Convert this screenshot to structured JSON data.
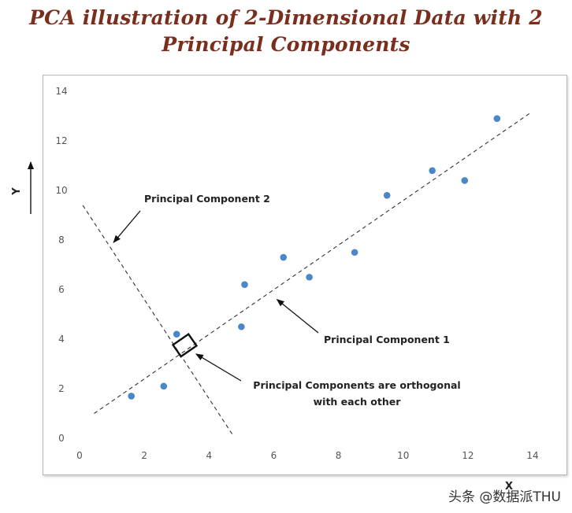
{
  "title": {
    "line1": "PCA illustration of 2-Dimensional Data with 2",
    "line2": "Principal Components"
  },
  "watermark": "头条 @数据派THU",
  "chart_data": {
    "type": "scatter",
    "title": "PCA illustration of 2-Dimensional Data with 2 Principal Components",
    "xlabel": "X",
    "ylabel": "Y",
    "xlim": [
      0,
      14
    ],
    "ylim": [
      0,
      14
    ],
    "x_ticks": [
      0,
      2,
      4,
      6,
      8,
      10,
      12,
      14
    ],
    "y_ticks": [
      0,
      2,
      4,
      6,
      8,
      10,
      12,
      14
    ],
    "grid": false,
    "point_color": "#4a86c8",
    "points": [
      {
        "x": 1.6,
        "y": 1.7
      },
      {
        "x": 2.6,
        "y": 2.1
      },
      {
        "x": 3.0,
        "y": 4.2
      },
      {
        "x": 5.0,
        "y": 4.5
      },
      {
        "x": 5.1,
        "y": 6.2
      },
      {
        "x": 6.3,
        "y": 7.3
      },
      {
        "x": 7.1,
        "y": 6.5
      },
      {
        "x": 8.5,
        "y": 7.5
      },
      {
        "x": 9.5,
        "y": 9.8
      },
      {
        "x": 10.9,
        "y": 10.8
      },
      {
        "x": 11.9,
        "y": 10.4
      },
      {
        "x": 12.9,
        "y": 12.9
      }
    ],
    "lines": [
      {
        "name": "Principal Component 1",
        "style": "dashed",
        "from": [
          0.45,
          1.0
        ],
        "to": [
          13.9,
          13.1
        ]
      },
      {
        "name": "Principal Component 2",
        "style": "dashed",
        "from": [
          0.1,
          9.4
        ],
        "to": [
          4.75,
          0.1
        ]
      }
    ],
    "annotations": [
      {
        "id": "pc2",
        "text": "Principal Component 2",
        "arrow_tip": [
          1.05,
          7.9
        ]
      },
      {
        "id": "pc1",
        "text": "Principal Component 1",
        "arrow_tip": [
          6.1,
          5.6
        ]
      },
      {
        "id": "orth",
        "text": [
          "Principal Components are orthogonal",
          "with each other"
        ],
        "arrow_tip": [
          3.6,
          3.4
        ]
      }
    ],
    "right_angle_marker": {
      "at": [
        3.25,
        3.75
      ]
    }
  }
}
